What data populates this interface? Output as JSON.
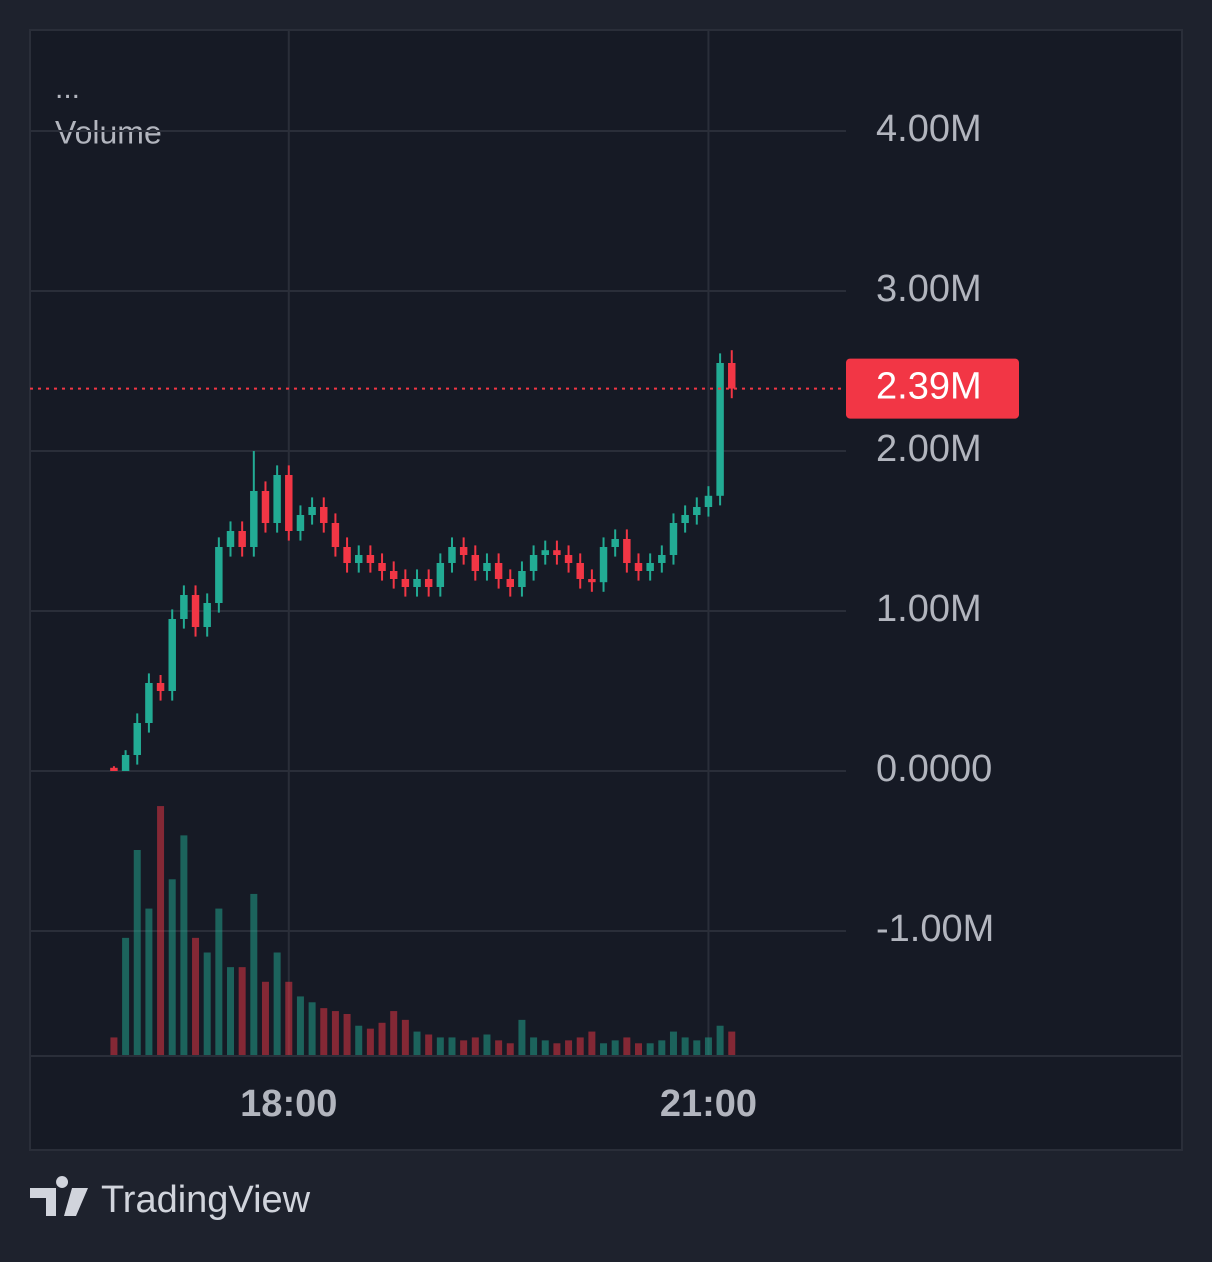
{
  "chart_data": {
    "type": "candlestick",
    "legend_menu": "...",
    "legend_label": "Volume",
    "x": [
      "16:45",
      "16:50",
      "16:55",
      "17:00",
      "17:05",
      "17:10",
      "17:15",
      "17:20",
      "17:25",
      "17:30",
      "17:35",
      "17:40",
      "17:45",
      "17:50",
      "17:55",
      "18:00",
      "18:05",
      "18:10",
      "18:15",
      "18:20",
      "18:25",
      "18:30",
      "18:35",
      "18:40",
      "18:45",
      "18:50",
      "18:55",
      "19:00",
      "19:05",
      "19:10",
      "19:15",
      "19:20",
      "19:25",
      "19:30",
      "19:35",
      "19:40",
      "19:45",
      "19:50",
      "19:55",
      "20:00",
      "20:05",
      "20:10",
      "20:15",
      "20:20",
      "20:25",
      "20:30",
      "20:35",
      "20:40",
      "20:45",
      "20:50",
      "20:55",
      "21:00",
      "21:05",
      "21:10"
    ],
    "open": [
      20000,
      0,
      100000,
      300000,
      550000,
      500000,
      950000,
      1100000,
      900000,
      1050000,
      1400000,
      1500000,
      1400000,
      1750000,
      1550000,
      1850000,
      1500000,
      1600000,
      1650000,
      1550000,
      1400000,
      1300000,
      1350000,
      1300000,
      1250000,
      1200000,
      1150000,
      1200000,
      1150000,
      1300000,
      1400000,
      1350000,
      1250000,
      1300000,
      1200000,
      1150000,
      1250000,
      1350000,
      1380000,
      1350000,
      1300000,
      1200000,
      1180000,
      1400000,
      1450000,
      1300000,
      1250000,
      1300000,
      1350000,
      1550000,
      1600000,
      1650000,
      1720000,
      2550000
    ],
    "high": [
      30000,
      130000,
      360000,
      610000,
      600000,
      1010000,
      1160000,
      1160000,
      1110000,
      1460000,
      1560000,
      1560000,
      2000000,
      1810000,
      1910000,
      1910000,
      1660000,
      1710000,
      1710000,
      1610000,
      1460000,
      1410000,
      1410000,
      1360000,
      1310000,
      1260000,
      1260000,
      1260000,
      1360000,
      1460000,
      1460000,
      1410000,
      1360000,
      1360000,
      1260000,
      1310000,
      1410000,
      1440000,
      1440000,
      1410000,
      1360000,
      1260000,
      1460000,
      1510000,
      1510000,
      1360000,
      1360000,
      1410000,
      1610000,
      1660000,
      1710000,
      1780000,
      2610000,
      2630000
    ],
    "low": [
      0,
      0,
      40000,
      240000,
      440000,
      440000,
      890000,
      840000,
      840000,
      990000,
      1340000,
      1340000,
      1340000,
      1490000,
      1490000,
      1440000,
      1440000,
      1540000,
      1490000,
      1340000,
      1240000,
      1240000,
      1240000,
      1190000,
      1140000,
      1090000,
      1090000,
      1090000,
      1090000,
      1240000,
      1290000,
      1190000,
      1190000,
      1140000,
      1090000,
      1090000,
      1190000,
      1290000,
      1290000,
      1240000,
      1140000,
      1120000,
      1120000,
      1340000,
      1240000,
      1190000,
      1190000,
      1240000,
      1290000,
      1490000,
      1540000,
      1590000,
      1660000,
      2330000
    ],
    "close": [
      0,
      100000,
      300000,
      550000,
      500000,
      950000,
      1100000,
      900000,
      1050000,
      1400000,
      1500000,
      1400000,
      1750000,
      1550000,
      1850000,
      1500000,
      1600000,
      1650000,
      1550000,
      1400000,
      1300000,
      1350000,
      1300000,
      1250000,
      1200000,
      1150000,
      1200000,
      1150000,
      1300000,
      1400000,
      1350000,
      1250000,
      1300000,
      1200000,
      1150000,
      1250000,
      1350000,
      1380000,
      1350000,
      1300000,
      1200000,
      1180000,
      1400000,
      1450000,
      1300000,
      1250000,
      1300000,
      1350000,
      1550000,
      1600000,
      1650000,
      1720000,
      2550000,
      2390000
    ],
    "up_color": "#22ab94",
    "down_color": "#f23645",
    "volume": {
      "name": "Volume",
      "axis": "y2",
      "values": [
        60,
        400,
        700,
        500,
        850,
        600,
        750,
        400,
        350,
        500,
        300,
        300,
        550,
        250,
        350,
        250,
        200,
        180,
        160,
        150,
        140,
        100,
        90,
        110,
        150,
        120,
        80,
        70,
        60,
        60,
        50,
        60,
        70,
        50,
        40,
        120,
        60,
        50,
        40,
        50,
        60,
        80,
        40,
        50,
        60,
        40,
        40,
        50,
        80,
        60,
        50,
        60,
        100,
        80
      ]
    },
    "last_price": {
      "value": 2390000,
      "label": "2.39M"
    },
    "xlim": [
      "16:09",
      "21:59"
    ],
    "xticks": [
      "18:00",
      "21:00"
    ],
    "ylim": [
      -1775000,
      4631250
    ],
    "yticks": [
      {
        "value": -1000000,
        "label": "-1.00M"
      },
      {
        "value": 0,
        "label": "0.0000"
      },
      {
        "value": 1000000,
        "label": "1.00M"
      },
      {
        "value": 2000000,
        "label": "2.00M"
      },
      {
        "value": 3000000,
        "label": "3.00M"
      },
      {
        "value": 4000000,
        "label": "4.00M"
      }
    ],
    "y2lim": [
      0,
      3500
    ],
    "grid": true
  },
  "branding": "TradingView"
}
